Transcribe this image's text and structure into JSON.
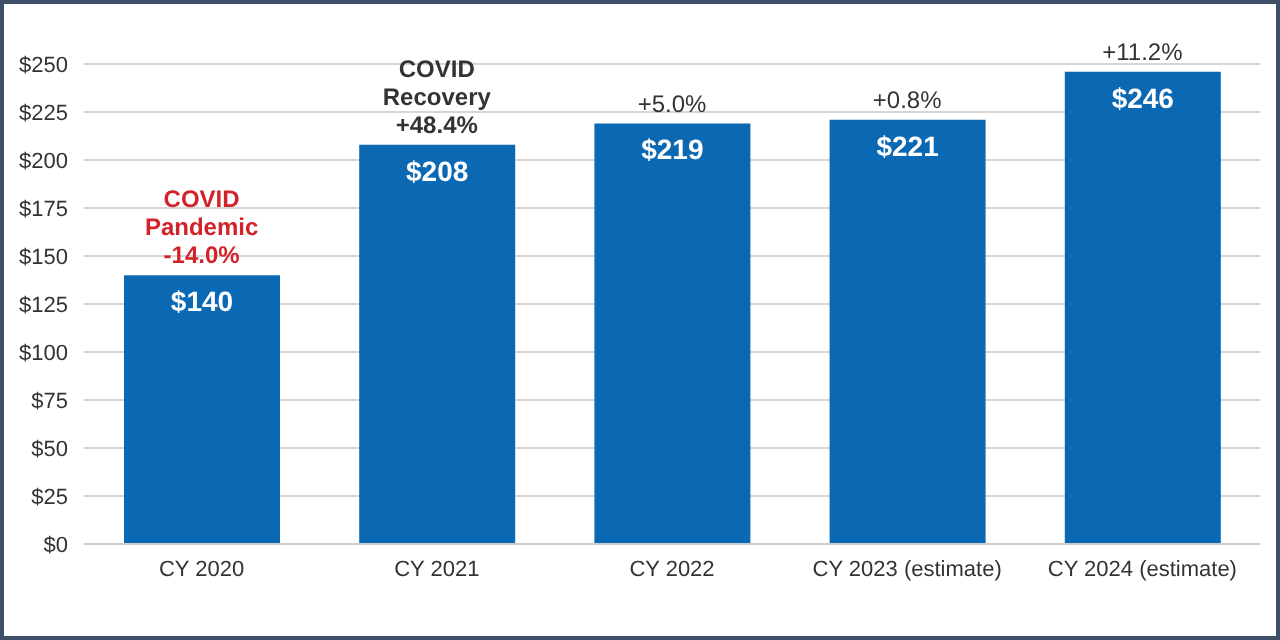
{
  "chart_data": {
    "type": "bar",
    "categories": [
      "CY 2020",
      "CY 2021",
      "CY 2022",
      "CY 2023 (estimate)",
      "CY 2024 (estimate)"
    ],
    "values": [
      140,
      208,
      219,
      221,
      246
    ],
    "value_labels": [
      "$140",
      "$208",
      "$219",
      "$221",
      "$246"
    ],
    "color": "#0b68b3",
    "ylim": [
      0,
      250
    ],
    "yticks": [
      {
        "value": 0,
        "label": "$0"
      },
      {
        "value": 25,
        "label": "$25"
      },
      {
        "value": 50,
        "label": "$50"
      },
      {
        "value": 75,
        "label": "$75"
      },
      {
        "value": 100,
        "label": "$100"
      },
      {
        "value": 125,
        "label": "$125"
      },
      {
        "value": 150,
        "label": "$150"
      },
      {
        "value": 175,
        "label": "$175"
      },
      {
        "value": 200,
        "label": "$200"
      },
      {
        "value": 225,
        "label": "$225"
      },
      {
        "value": 250,
        "label": "$250"
      }
    ],
    "grid": "y",
    "annotations": [
      {
        "text": "COVID\nPandemic\n-14.0%",
        "x": "CY 2020",
        "y": 140
      },
      {
        "text": "COVID\nRecovery\n+48.4%",
        "x": "CY 2021",
        "y": 208
      },
      {
        "text": "+5.0%",
        "x": "CY 2022",
        "y": 219
      },
      {
        "text": "+0.8%",
        "x": "CY 2023 (estimate)",
        "y": 221
      },
      {
        "text": "+11.2%",
        "x": "CY 2024 (estimate)",
        "y": 246
      }
    ]
  }
}
